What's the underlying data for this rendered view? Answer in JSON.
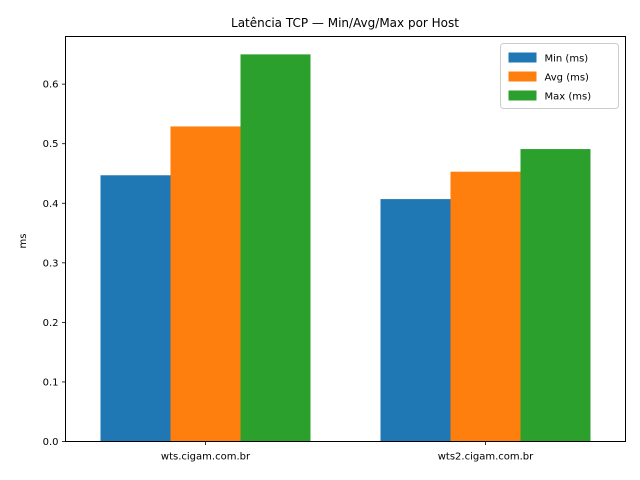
{
  "chart_data": {
    "type": "bar",
    "title": "Latência TCP — Min/Avg/Max por Host",
    "xlabel": "",
    "ylabel": "ms",
    "categories": [
      "wts.cigam.com.br",
      "wts2.cigam.com.br"
    ],
    "series": [
      {
        "name": "Min (ms)",
        "values": [
          0.447,
          0.407
        ],
        "color": "#1f77b4"
      },
      {
        "name": "Avg (ms)",
        "values": [
          0.529,
          0.453
        ],
        "color": "#ff7f0e"
      },
      {
        "name": "Max (ms)",
        "values": [
          0.65,
          0.491
        ],
        "color": "#2ca02c"
      }
    ],
    "ylim": [
      0,
      0.68
    ],
    "yticks": [
      "0.0",
      "0.1",
      "0.2",
      "0.3",
      "0.4",
      "0.5",
      "0.6"
    ],
    "grid": false,
    "legend": "top-right"
  }
}
